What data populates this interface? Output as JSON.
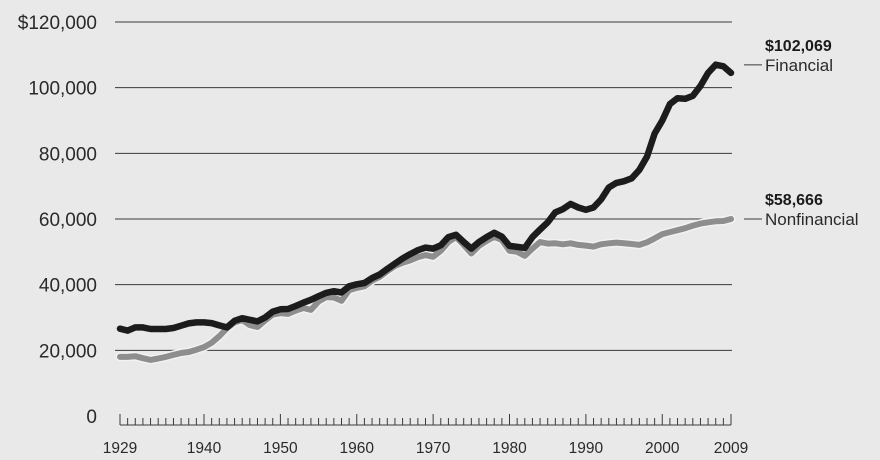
{
  "chart_data": {
    "type": "line",
    "title": "",
    "xlabel": "",
    "ylabel": "",
    "xlim": [
      1929,
      2009
    ],
    "ylim": [
      0,
      120000
    ],
    "y_ticks": [
      {
        "value": 0,
        "label": "0"
      },
      {
        "value": 20000,
        "label": "20,000"
      },
      {
        "value": 40000,
        "label": "40,000"
      },
      {
        "value": 60000,
        "label": "60,000"
      },
      {
        "value": 80000,
        "label": "80,000"
      },
      {
        "value": 100000,
        "label": "100,000"
      },
      {
        "value": 120000,
        "label": "$120,000"
      }
    ],
    "x_ticks": [
      {
        "value": 1929,
        "label": "1929"
      },
      {
        "value": 1940,
        "label": "1940"
      },
      {
        "value": 1950,
        "label": "1950"
      },
      {
        "value": 1960,
        "label": "1960"
      },
      {
        "value": 1970,
        "label": "1970"
      },
      {
        "value": 1980,
        "label": "1980"
      },
      {
        "value": 1990,
        "label": "1990"
      },
      {
        "value": 2000,
        "label": "2000"
      },
      {
        "value": 2009,
        "label": "2009"
      }
    ],
    "grid": true,
    "series": [
      {
        "name": "Nonfinancial",
        "end_label": "$58,666",
        "color": "#8e8e8e",
        "points": [
          [
            1929,
            18000
          ],
          [
            1930,
            18000
          ],
          [
            1931,
            18200
          ],
          [
            1932,
            17600
          ],
          [
            1933,
            17100
          ],
          [
            1934,
            17500
          ],
          [
            1935,
            18000
          ],
          [
            1936,
            18600
          ],
          [
            1937,
            19200
          ],
          [
            1938,
            19500
          ],
          [
            1939,
            20200
          ],
          [
            1940,
            21000
          ],
          [
            1941,
            22300
          ],
          [
            1942,
            24300
          ],
          [
            1943,
            26700
          ],
          [
            1944,
            28500
          ],
          [
            1945,
            29200
          ],
          [
            1946,
            27700
          ],
          [
            1947,
            27100
          ],
          [
            1948,
            29100
          ],
          [
            1949,
            30900
          ],
          [
            1950,
            31300
          ],
          [
            1951,
            31100
          ],
          [
            1952,
            32100
          ],
          [
            1953,
            32900
          ],
          [
            1954,
            32300
          ],
          [
            1955,
            34900
          ],
          [
            1956,
            36200
          ],
          [
            1957,
            36100
          ],
          [
            1958,
            35100
          ],
          [
            1959,
            38300
          ],
          [
            1960,
            39000
          ],
          [
            1961,
            39500
          ],
          [
            1962,
            41200
          ],
          [
            1963,
            42400
          ],
          [
            1964,
            44100
          ],
          [
            1965,
            45700
          ],
          [
            1966,
            46700
          ],
          [
            1967,
            47400
          ],
          [
            1968,
            48400
          ],
          [
            1969,
            49000
          ],
          [
            1970,
            48500
          ],
          [
            1971,
            50300
          ],
          [
            1972,
            53000
          ],
          [
            1973,
            54500
          ],
          [
            1974,
            52100
          ],
          [
            1975,
            49500
          ],
          [
            1976,
            51800
          ],
          [
            1977,
            53300
          ],
          [
            1978,
            54600
          ],
          [
            1979,
            53600
          ],
          [
            1980,
            50300
          ],
          [
            1981,
            50000
          ],
          [
            1982,
            48800
          ],
          [
            1983,
            51000
          ],
          [
            1984,
            53000
          ],
          [
            1985,
            52500
          ],
          [
            1986,
            52600
          ],
          [
            1987,
            52300
          ],
          [
            1988,
            52600
          ],
          [
            1989,
            52100
          ],
          [
            1990,
            51900
          ],
          [
            1991,
            51600
          ],
          [
            1992,
            52300
          ],
          [
            1993,
            52600
          ],
          [
            1994,
            52800
          ],
          [
            1995,
            52600
          ],
          [
            1996,
            52400
          ],
          [
            1997,
            52100
          ],
          [
            1998,
            52900
          ],
          [
            1999,
            54100
          ],
          [
            2000,
            55400
          ],
          [
            2001,
            56000
          ],
          [
            2002,
            56600
          ],
          [
            2003,
            57200
          ],
          [
            2004,
            58000
          ],
          [
            2005,
            58600
          ],
          [
            2006,
            59000
          ],
          [
            2007,
            59300
          ],
          [
            2008,
            59400
          ],
          [
            2009,
            60000
          ]
        ]
      },
      {
        "name": "Financial",
        "end_label": "$102,069",
        "color": "#1c1c1c",
        "points": [
          [
            1929,
            26600
          ],
          [
            1930,
            26000
          ],
          [
            1931,
            27000
          ],
          [
            1932,
            27000
          ],
          [
            1933,
            26500
          ],
          [
            1934,
            26500
          ],
          [
            1935,
            26500
          ],
          [
            1936,
            26800
          ],
          [
            1937,
            27500
          ],
          [
            1938,
            28200
          ],
          [
            1939,
            28500
          ],
          [
            1940,
            28500
          ],
          [
            1941,
            28300
          ],
          [
            1942,
            27600
          ],
          [
            1943,
            27000
          ],
          [
            1944,
            29000
          ],
          [
            1945,
            29800
          ],
          [
            1946,
            29300
          ],
          [
            1947,
            28800
          ],
          [
            1948,
            30000
          ],
          [
            1949,
            31800
          ],
          [
            1950,
            32500
          ],
          [
            1951,
            32600
          ],
          [
            1952,
            33500
          ],
          [
            1953,
            34500
          ],
          [
            1954,
            35400
          ],
          [
            1955,
            36500
          ],
          [
            1956,
            37500
          ],
          [
            1957,
            38000
          ],
          [
            1958,
            37600
          ],
          [
            1959,
            39500
          ],
          [
            1960,
            40100
          ],
          [
            1961,
            40500
          ],
          [
            1962,
            42000
          ],
          [
            1963,
            43100
          ],
          [
            1964,
            44800
          ],
          [
            1965,
            46400
          ],
          [
            1966,
            48000
          ],
          [
            1967,
            49300
          ],
          [
            1968,
            50500
          ],
          [
            1969,
            51300
          ],
          [
            1970,
            51000
          ],
          [
            1971,
            52000
          ],
          [
            1972,
            54500
          ],
          [
            1973,
            55200
          ],
          [
            1974,
            53000
          ],
          [
            1975,
            51000
          ],
          [
            1976,
            53000
          ],
          [
            1977,
            54500
          ],
          [
            1978,
            55800
          ],
          [
            1979,
            54600
          ],
          [
            1980,
            51800
          ],
          [
            1981,
            51500
          ],
          [
            1982,
            51200
          ],
          [
            1983,
            54500
          ],
          [
            1984,
            56800
          ],
          [
            1985,
            59000
          ],
          [
            1986,
            62000
          ],
          [
            1987,
            63000
          ],
          [
            1988,
            64600
          ],
          [
            1989,
            63500
          ],
          [
            1990,
            62800
          ],
          [
            1991,
            63500
          ],
          [
            1992,
            66000
          ],
          [
            1993,
            69600
          ],
          [
            1994,
            71000
          ],
          [
            1995,
            71500
          ],
          [
            1996,
            72400
          ],
          [
            1997,
            75000
          ],
          [
            1998,
            79000
          ],
          [
            1999,
            86000
          ],
          [
            2000,
            90000
          ],
          [
            2001,
            95000
          ],
          [
            2002,
            96800
          ],
          [
            2003,
            96600
          ],
          [
            2004,
            97500
          ],
          [
            2005,
            100500
          ],
          [
            2006,
            104500
          ],
          [
            2007,
            107000
          ],
          [
            2008,
            106500
          ],
          [
            2009,
            104500
          ]
        ]
      }
    ]
  }
}
